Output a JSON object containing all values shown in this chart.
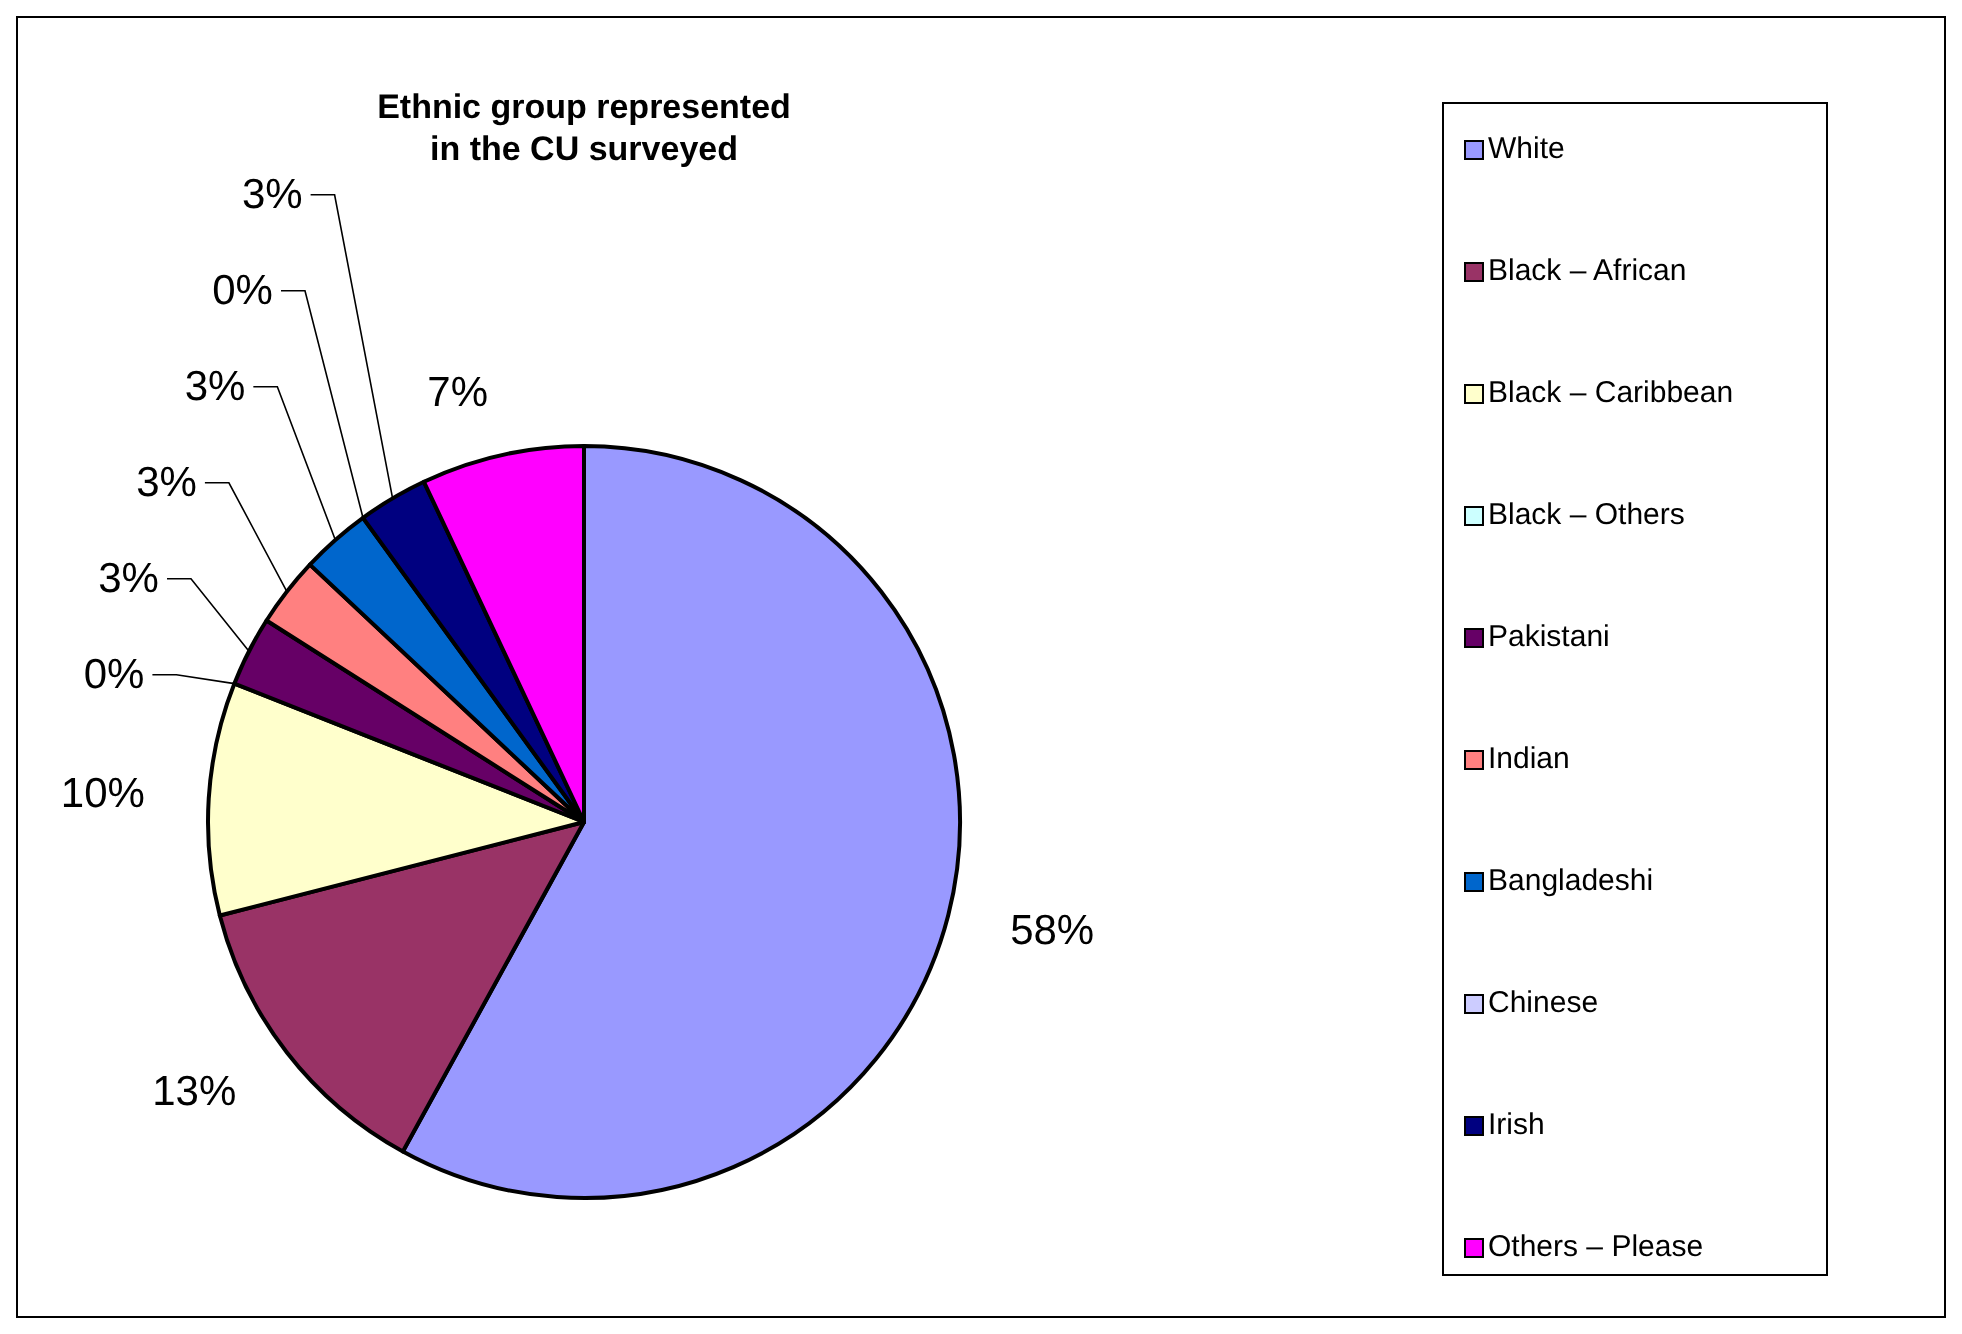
{
  "chart_data": {
    "type": "pie",
    "title": "Ethnic group represented in the CU surveyed",
    "categories": [
      "White",
      "Black – African",
      "Black – Caribbean",
      "Black – Others",
      "Pakistani",
      "Indian",
      "Bangladeshi",
      "Chinese",
      "Irish",
      "Others – Please"
    ],
    "values": [
      58,
      13,
      10,
      0,
      3,
      3,
      3,
      0,
      3,
      7
    ],
    "colors": [
      "#9999ff",
      "#993366",
      "#ffffcc",
      "#ccffff",
      "#660066",
      "#ff8080",
      "#0066cc",
      "#ccccff",
      "#000080",
      "#ff00ff"
    ],
    "value_labels": [
      "58%",
      "13%",
      "10%",
      "0%",
      "3%",
      "3%",
      "3%",
      "0%",
      "3%",
      "7%"
    ],
    "legend": "right"
  }
}
